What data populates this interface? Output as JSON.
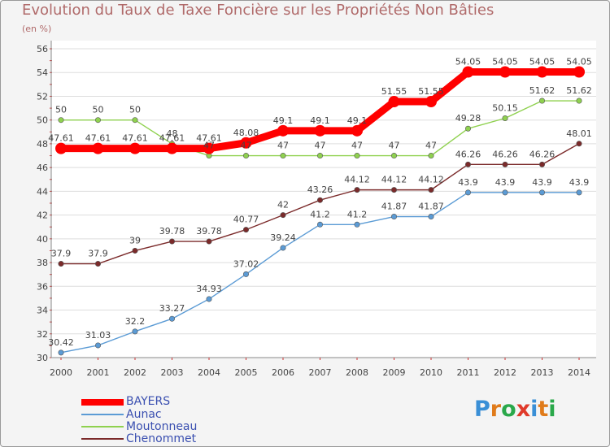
{
  "header": {
    "title": "Evolution du Taux de Taxe Foncière sur les Propriétés Non Bâties",
    "subtitle": "(en %)"
  },
  "logo": {
    "letters": [
      "P",
      "r",
      "o",
      "x",
      "i",
      "t",
      "i"
    ],
    "colors": [
      "#3a8fd6",
      "#e07b1a",
      "#2aa84a",
      "#e03a2a",
      "#3a8fd6",
      "#e07b1a",
      "#2aa84a"
    ]
  },
  "chart_data": {
    "type": "line",
    "title": "Evolution du Taux de Taxe Foncière sur les Propriétés Non Bâties",
    "ylabel": "(en %)",
    "xlabel": "",
    "x": [
      "2000",
      "2001",
      "2002",
      "2003",
      "2004",
      "2005",
      "2006",
      "2007",
      "2008",
      "2009",
      "2010",
      "2011",
      "2012",
      "2013",
      "2014"
    ],
    "ylim": [
      30,
      56
    ],
    "yticks": [
      30,
      32,
      34,
      36,
      38,
      40,
      42,
      44,
      46,
      48,
      50,
      52,
      54,
      56
    ],
    "grid": "horizontal",
    "legend_position": "bottom-left",
    "series": [
      {
        "name": "BAYERS",
        "color": "#ff0000",
        "emphasis": true,
        "values": [
          47.61,
          47.61,
          47.61,
          47.61,
          47.61,
          48.08,
          49.1,
          49.1,
          49.1,
          51.55,
          51.55,
          54.05,
          54.05,
          54.05,
          54.05
        ],
        "labels": [
          "47.61",
          "47.61",
          "47.61",
          "47.61",
          "47.61",
          "48.08",
          "49.1",
          "49.1",
          "49.1",
          "51.55",
          "51.55",
          "54.05",
          "54.05",
          "54.05",
          "54.05"
        ]
      },
      {
        "name": "Aunac",
        "color": "#5b9bd5",
        "emphasis": false,
        "values": [
          30.42,
          31.03,
          32.2,
          33.27,
          34.93,
          37.02,
          39.24,
          41.2,
          41.2,
          41.87,
          41.87,
          43.9,
          43.9,
          43.9,
          43.9
        ],
        "labels": [
          "30.42",
          "31.03",
          "32.2",
          "33.27",
          "34.93",
          "37.02",
          "39.24",
          "41.2",
          "41.2",
          "41.87",
          "41.87",
          "43.9",
          "43.9",
          "43.9",
          "43.9"
        ]
      },
      {
        "name": "Moutonneau",
        "color": "#8fd14f",
        "emphasis": false,
        "values": [
          50,
          50,
          50,
          48,
          47,
          47,
          47,
          47,
          47,
          47,
          47,
          49.28,
          50.15,
          51.62,
          51.62
        ],
        "labels": [
          "50",
          "50",
          "50",
          "48",
          "47",
          "47",
          "47",
          "47",
          "47",
          "47",
          "47",
          "49.28",
          "50.15",
          "51.62",
          "51.62"
        ]
      },
      {
        "name": "Chenommet",
        "color": "#7b2a2a",
        "emphasis": false,
        "values": [
          37.9,
          37.9,
          39,
          39.78,
          39.78,
          40.77,
          42,
          43.26,
          44.12,
          44.12,
          44.12,
          46.26,
          46.26,
          46.26,
          48.01
        ],
        "labels": [
          "37.9",
          "37.9",
          "39",
          "39.78",
          "39.78",
          "40.77",
          "42",
          "43.26",
          "44.12",
          "44.12",
          "44.12",
          "46.26",
          "46.26",
          "46.26",
          "48.01"
        ]
      }
    ]
  }
}
